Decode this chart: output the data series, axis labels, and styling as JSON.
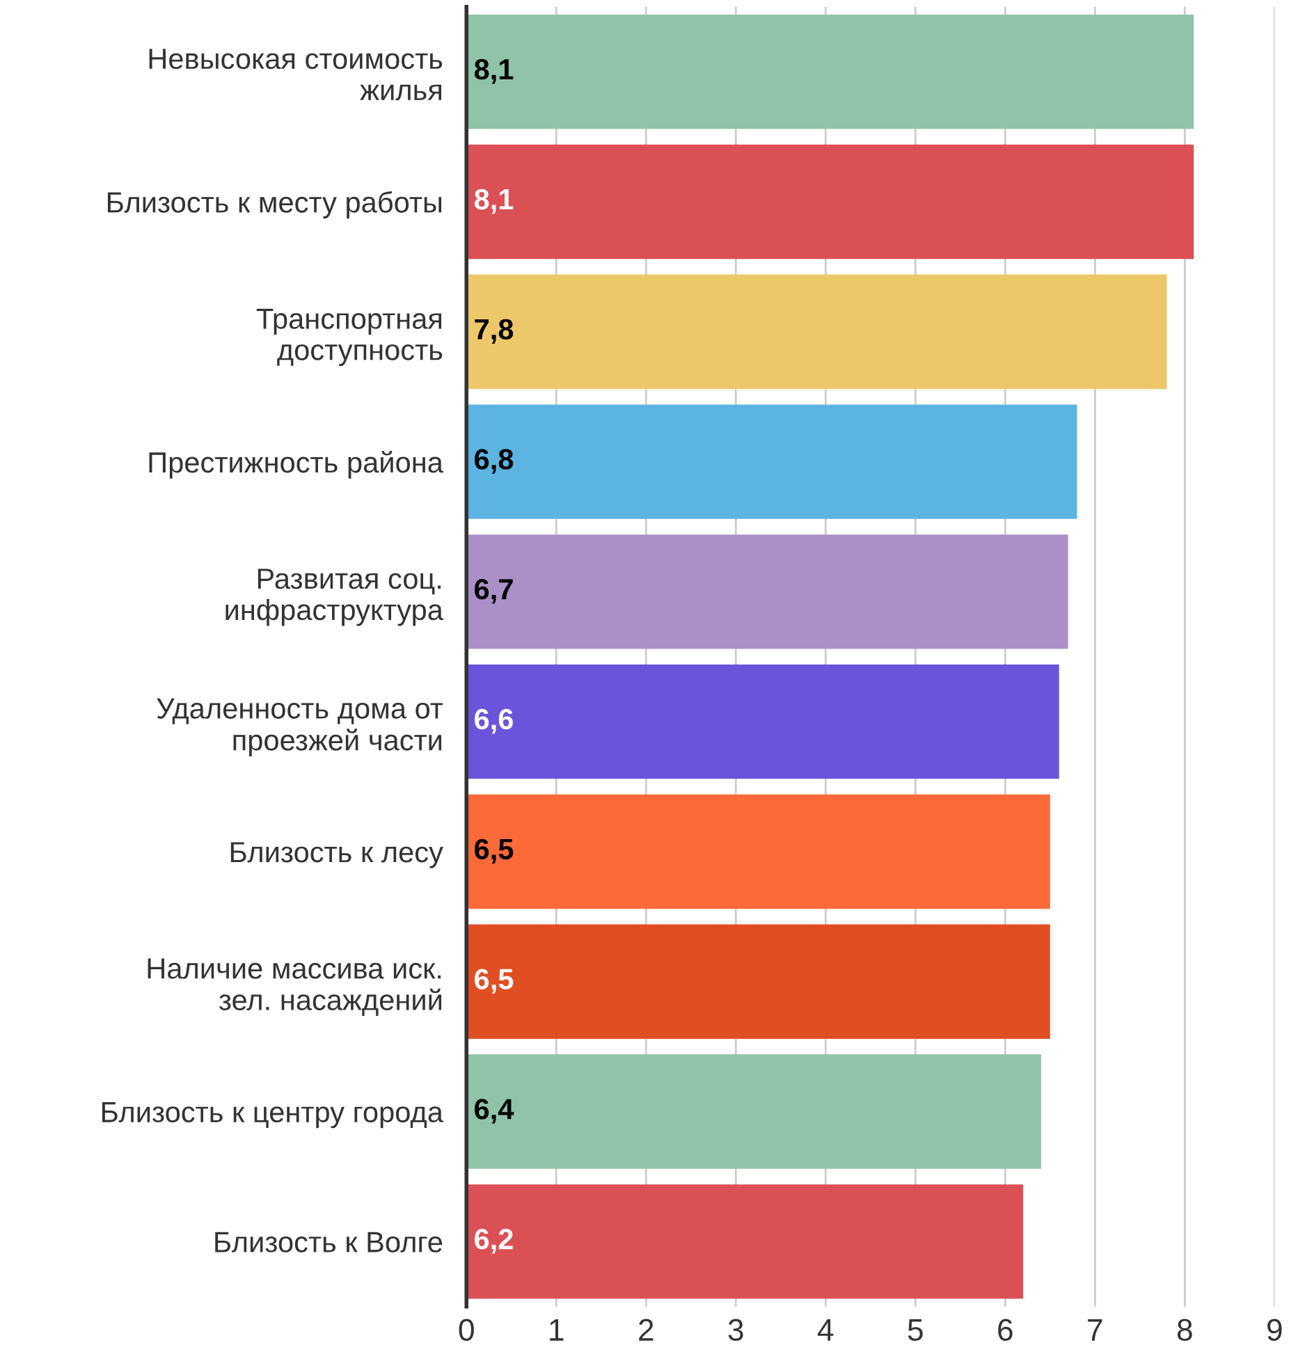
{
  "chart_data": {
    "type": "bar",
    "orientation": "horizontal",
    "categories": [
      "Невысокая стоимость\nжилья",
      "Близость к месту работы",
      "Транспортная\nдоступность",
      "Престижность района",
      "Развитая соц.\nинфраструктура",
      "Удаленность дома от\nпроезжей части",
      "Близость к лесу",
      "Наличие массива иск.\nзел. насаждений",
      "Близость к центру города",
      "Близость к Волге"
    ],
    "values": [
      8.1,
      8.1,
      7.8,
      6.8,
      6.7,
      6.6,
      6.5,
      6.5,
      6.4,
      6.2
    ],
    "colors": [
      "#8fc4a8",
      "#db5055",
      "#edc86a",
      "#5cb4e2",
      "#ab90c8",
      "#6b54db",
      "#fd6a3a",
      "#e04e22",
      "#8fc4a8",
      "#db5055"
    ],
    "value_labels": [
      "8,1",
      "8,1",
      "7,8",
      "6,8",
      "6,7",
      "6,6",
      "6,5",
      "6,5",
      "6,4",
      "6,2"
    ],
    "xlim": [
      0,
      9
    ],
    "xticks": [
      0,
      1,
      2,
      3,
      4,
      5,
      6,
      7,
      8,
      9
    ],
    "grid": "x"
  }
}
